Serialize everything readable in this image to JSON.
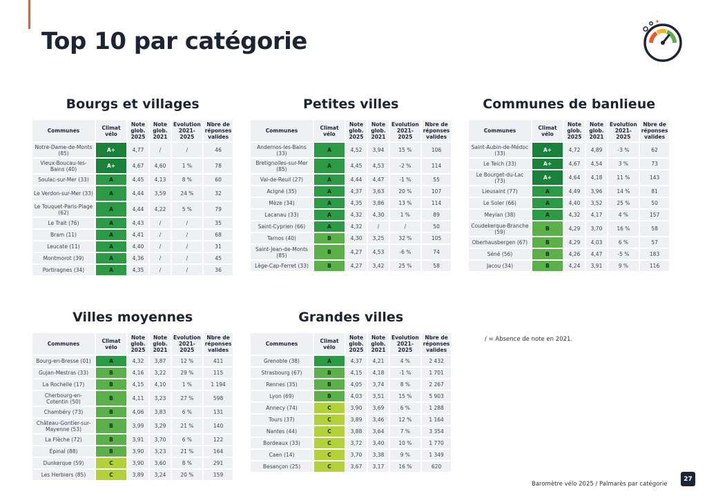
{
  "page": {
    "title": "Top 10 par catégorie",
    "footnote": "/ = Absence de note en 2021.",
    "footer": "Baromètre vélo 2025 / Palmarès par catégorie",
    "page_number": "27"
  },
  "headers": {
    "communes": "Communes",
    "climat": "Climat vélo",
    "note2025": "Note glob. 2025",
    "note2021": "Note glob. 2021",
    "evolution": "Evolution 2021-2025",
    "reponses": "Nbre de réponses valides"
  },
  "grade_colors": {
    "A+": "#19813a",
    "A": "#2c9a45",
    "B": "#5bb04a",
    "C": "#b3d23a"
  },
  "categories": [
    {
      "title": "Bourgs et villages",
      "rows": [
        {
          "commune": "Notre-Dame-de-Monts (85)",
          "grade": "A+",
          "note2025": "4,77",
          "note2021": "/",
          "evolution": "/",
          "reponses": "46"
        },
        {
          "commune": "Vieux-Boucau-les-Bains (40)",
          "grade": "A+",
          "note2025": "4,67",
          "note2021": "4,60",
          "evolution": "1 %",
          "reponses": "78"
        },
        {
          "commune": "Soulac-sur-Mer (33)",
          "grade": "A",
          "note2025": "4,45",
          "note2021": "4,13",
          "evolution": "8 %",
          "reponses": "60"
        },
        {
          "commune": "Le Verdon-sur-Mer (33)",
          "grade": "A",
          "note2025": "4,44",
          "note2021": "3,59",
          "evolution": "24 %",
          "reponses": "32"
        },
        {
          "commune": "Le Touquet-Paris-Plage (62)",
          "grade": "A",
          "note2025": "4,44",
          "note2021": "4,22",
          "evolution": "5 %",
          "reponses": "79"
        },
        {
          "commune": "Le Trait (76)",
          "grade": "A",
          "note2025": "4,43",
          "note2021": "/",
          "evolution": "/",
          "reponses": "35"
        },
        {
          "commune": "Bram (11)",
          "grade": "A",
          "note2025": "4,41",
          "note2021": "/",
          "evolution": "/",
          "reponses": "68"
        },
        {
          "commune": "Leucate (11)",
          "grade": "A",
          "note2025": "4,40",
          "note2021": "/",
          "evolution": "/",
          "reponses": "31"
        },
        {
          "commune": "Montmorot (39)",
          "grade": "A",
          "note2025": "4,36",
          "note2021": "/",
          "evolution": "/",
          "reponses": "45"
        },
        {
          "commune": "Portiragnes (34)",
          "grade": "A",
          "note2025": "4,35",
          "note2021": "/",
          "evolution": "/",
          "reponses": "36"
        }
      ]
    },
    {
      "title": "Petites villes",
      "rows": [
        {
          "commune": "Andernos-les-Bains (33)",
          "grade": "A",
          "note2025": "4,52",
          "note2021": "3,94",
          "evolution": "15 %",
          "reponses": "106"
        },
        {
          "commune": "Bretignolles-sur-Mer (85)",
          "grade": "A",
          "note2025": "4,45",
          "note2021": "4,53",
          "evolution": "-2 %",
          "reponses": "114"
        },
        {
          "commune": "Val-de-Reuil (27)",
          "grade": "A",
          "note2025": "4,44",
          "note2021": "4,47",
          "evolution": "-1 %",
          "reponses": "55"
        },
        {
          "commune": "Acigné (35)",
          "grade": "A",
          "note2025": "4,37",
          "note2021": "3,63",
          "evolution": "20 %",
          "reponses": "107"
        },
        {
          "commune": "Mèze (34)",
          "grade": "A",
          "note2025": "4,35",
          "note2021": "3,86",
          "evolution": "13 %",
          "reponses": "114"
        },
        {
          "commune": "Lacanau (33)",
          "grade": "A",
          "note2025": "4,32",
          "note2021": "4,30",
          "evolution": "1 %",
          "reponses": "89"
        },
        {
          "commune": "Saint-Cyprien (66)",
          "grade": "A",
          "note2025": "4,32",
          "note2021": "/",
          "evolution": "/",
          "reponses": "50"
        },
        {
          "commune": "Tarnos (40)",
          "grade": "B",
          "note2025": "4,30",
          "note2021": "3,25",
          "evolution": "32 %",
          "reponses": "105"
        },
        {
          "commune": "Saint-Jean-de-Monts (85)",
          "grade": "B",
          "note2025": "4,27",
          "note2021": "4,53",
          "evolution": "-6 %",
          "reponses": "74"
        },
        {
          "commune": "Lège-Cap-Ferret (33)",
          "grade": "B",
          "note2025": "4,27",
          "note2021": "3,42",
          "evolution": "25 %",
          "reponses": "58"
        }
      ]
    },
    {
      "title": "Communes de banlieue",
      "rows": [
        {
          "commune": "Saint-Aubin-de-Médoc (33)",
          "grade": "A+",
          "note2025": "4,72",
          "note2021": "4,89",
          "evolution": "-3 %",
          "reponses": "62"
        },
        {
          "commune": "Le Teich (33)",
          "grade": "A+",
          "note2025": "4,67",
          "note2021": "4,54",
          "evolution": "3 %",
          "reponses": "73"
        },
        {
          "commune": "Le Bourget-du-Lac (73)",
          "grade": "A+",
          "note2025": "4,64",
          "note2021": "4,18",
          "evolution": "11 %",
          "reponses": "143"
        },
        {
          "commune": "Lieusaint (77)",
          "grade": "A",
          "note2025": "4,49",
          "note2021": "3,96",
          "evolution": "14 %",
          "reponses": "81"
        },
        {
          "commune": "Le Soler (66)",
          "grade": "A",
          "note2025": "4,40",
          "note2021": "3,52",
          "evolution": "25 %",
          "reponses": "50"
        },
        {
          "commune": "Meylan (38)",
          "grade": "A",
          "note2025": "4,32",
          "note2021": "4,17",
          "evolution": "4 %",
          "reponses": "157"
        },
        {
          "commune": "Coudekerque-Branche (59)",
          "grade": "B",
          "note2025": "4,29",
          "note2021": "3,70",
          "evolution": "16 %",
          "reponses": "58"
        },
        {
          "commune": "Oberhausbergen (67)",
          "grade": "B",
          "note2025": "4,29",
          "note2021": "4,03",
          "evolution": "6 %",
          "reponses": "57"
        },
        {
          "commune": "Séné (56)",
          "grade": "B",
          "note2025": "4,26",
          "note2021": "4,47",
          "evolution": "-5 %",
          "reponses": "183"
        },
        {
          "commune": "Jacou (34)",
          "grade": "B",
          "note2025": "4,24",
          "note2021": "3,91",
          "evolution": "9 %",
          "reponses": "116"
        }
      ]
    },
    {
      "title": "Villes moyennes",
      "rows": [
        {
          "commune": "Bourg-en-Bresse (01)",
          "grade": "A",
          "note2025": "4,32",
          "note2021": "3,87",
          "evolution": "12 %",
          "reponses": "411"
        },
        {
          "commune": "Gujan-Mestras (33)",
          "grade": "B",
          "note2025": "4,16",
          "note2021": "3,22",
          "evolution": "29 %",
          "reponses": "115"
        },
        {
          "commune": "La Rochelle (17)",
          "grade": "B",
          "note2025": "4,15",
          "note2021": "4,10",
          "evolution": "1 %",
          "reponses": "1 194"
        },
        {
          "commune": "Cherbourg-en-Cotentin (50)",
          "grade": "B",
          "note2025": "4,11",
          "note2021": "3,23",
          "evolution": "27 %",
          "reponses": "598"
        },
        {
          "commune": "Chambéry (73)",
          "grade": "B",
          "note2025": "4,06",
          "note2021": "3,83",
          "evolution": "6 %",
          "reponses": "131"
        },
        {
          "commune": "Château-Gontier-sur-Mayenne (53)",
          "grade": "B",
          "note2025": "3,99",
          "note2021": "3,29",
          "evolution": "21 %",
          "reponses": "140"
        },
        {
          "commune": "La Flèche (72)",
          "grade": "B",
          "note2025": "3,91",
          "note2021": "3,70",
          "evolution": "6 %",
          "reponses": "122"
        },
        {
          "commune": "Épinal (88)",
          "grade": "B",
          "note2025": "3,90",
          "note2021": "3,23",
          "evolution": "21 %",
          "reponses": "164"
        },
        {
          "commune": "Dunkerque (59)",
          "grade": "C",
          "note2025": "3,90",
          "note2021": "3,60",
          "evolution": "8 %",
          "reponses": "291"
        },
        {
          "commune": "Les Herbiers (85)",
          "grade": "C",
          "note2025": "3,89",
          "note2021": "3,24",
          "evolution": "20 %",
          "reponses": "159"
        }
      ]
    },
    {
      "title": "Grandes villes",
      "rows": [
        {
          "commune": "Grenoble (38)",
          "grade": "A",
          "note2025": "4,37",
          "note2021": "4,21",
          "evolution": "4 %",
          "reponses": "2 432"
        },
        {
          "commune": "Strasbourg (67)",
          "grade": "B",
          "note2025": "4,15",
          "note2021": "4,18",
          "evolution": "-1 %",
          "reponses": "1 701"
        },
        {
          "commune": "Rennes (35)",
          "grade": "B",
          "note2025": "4,05",
          "note2021": "3,74",
          "evolution": "8 %",
          "reponses": "2 267"
        },
        {
          "commune": "Lyon (69)",
          "grade": "B",
          "note2025": "4,03",
          "note2021": "3,51",
          "evolution": "15 %",
          "reponses": "5 903"
        },
        {
          "commune": "Annecy (74)",
          "grade": "C",
          "note2025": "3,90",
          "note2021": "3,69",
          "evolution": "6 %",
          "reponses": "1 288"
        },
        {
          "commune": "Tours (37)",
          "grade": "C",
          "note2025": "3,89",
          "note2021": "3,46",
          "evolution": "12 %",
          "reponses": "1 164"
        },
        {
          "commune": "Nantes (44)",
          "grade": "C",
          "note2025": "3,88",
          "note2021": "3,64",
          "evolution": "7 %",
          "reponses": "3 354"
        },
        {
          "commune": "Bordeaux (33)",
          "grade": "C",
          "note2025": "3,72",
          "note2021": "3,40",
          "evolution": "10 %",
          "reponses": "1 770"
        },
        {
          "commune": "Caen (14)",
          "grade": "C",
          "note2025": "3,70",
          "note2021": "3,38",
          "evolution": "9 %",
          "reponses": "1 349"
        },
        {
          "commune": "Besançon (25)",
          "grade": "C",
          "note2025": "3,67",
          "note2021": "3,17",
          "evolution": "16 %",
          "reponses": "620"
        }
      ]
    }
  ]
}
